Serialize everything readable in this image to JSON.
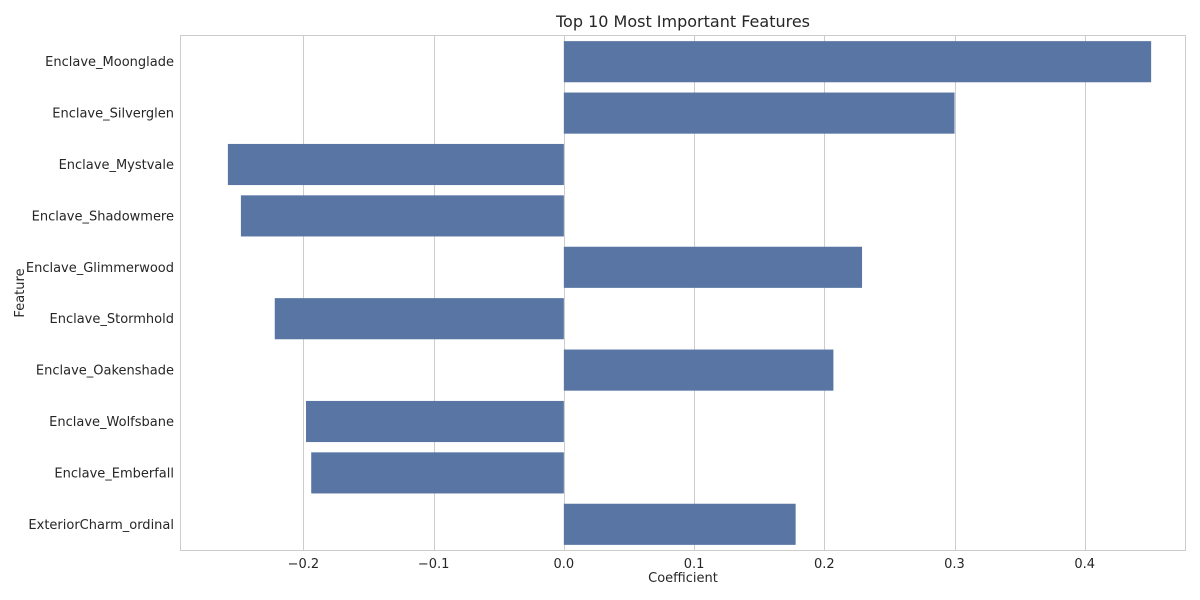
{
  "chart_data": {
    "type": "bar",
    "orientation": "horizontal",
    "title": "Top 10 Most Important Features",
    "xlabel": "Coefficient",
    "ylabel": "Feature",
    "xlim": [
      -0.294,
      0.477
    ],
    "xticks": [
      -0.2,
      -0.1,
      0.0,
      0.1,
      0.2,
      0.3,
      0.4
    ],
    "xtick_labels": [
      "−0.2",
      "−0.1",
      "0.0",
      "0.1",
      "0.2",
      "0.3",
      "0.4"
    ],
    "grid": "vertical",
    "bar_color": "#5875a4",
    "categories": [
      "Enclave_Moonglade",
      "Enclave_Silverglen",
      "Enclave_Mystvale",
      "Enclave_Shadowmere",
      "Enclave_Glimmerwood",
      "Enclave_Stormhold",
      "Enclave_Oakenshade",
      "Enclave_Wolfsbane",
      "Enclave_Emberfall",
      "ExteriorCharm_ordinal"
    ],
    "values": [
      0.451,
      0.3,
      -0.258,
      -0.248,
      0.229,
      -0.222,
      0.207,
      -0.198,
      -0.194,
      0.178
    ]
  }
}
